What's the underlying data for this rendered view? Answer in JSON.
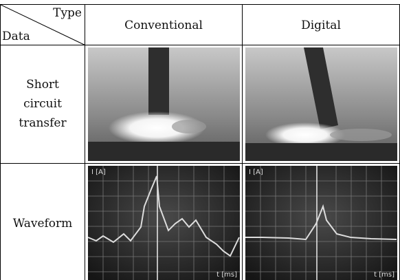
{
  "table": {
    "corner": {
      "column_header": "Type",
      "row_header": "Data"
    },
    "columns": [
      "Conventional",
      "Digital"
    ],
    "rows": [
      {
        "label_lines": [
          "Short",
          "circuit",
          "transfer"
        ]
      },
      {
        "label_lines": [
          "Waveform"
        ],
        "waveforms": [
          {
            "y_axis": "I [A]",
            "x_axis": "t [ms]"
          },
          {
            "y_axis": "I [A]",
            "x_axis": "t [ms]"
          }
        ]
      }
    ]
  }
}
